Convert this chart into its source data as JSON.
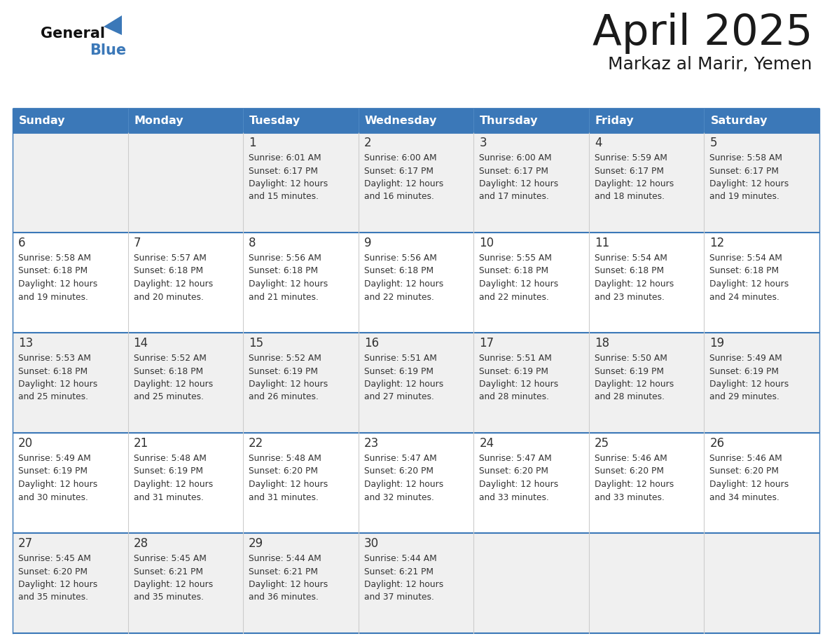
{
  "title": "April 2025",
  "subtitle": "Markaz al Marir, Yemen",
  "header_bg_color": "#3b78b8",
  "header_text_color": "#ffffff",
  "cell_bg_odd": "#f0f0f0",
  "cell_bg_even": "#ffffff",
  "day_headers": [
    "Sunday",
    "Monday",
    "Tuesday",
    "Wednesday",
    "Thursday",
    "Friday",
    "Saturday"
  ],
  "title_color": "#1a1a1a",
  "subtitle_color": "#1a1a1a",
  "text_color": "#333333",
  "line_color": "#3b78b8",
  "vline_color": "#cccccc",
  "days": [
    {
      "date": 1,
      "col": 2,
      "row": 0,
      "sunrise": "6:01 AM",
      "sunset": "6:17 PM",
      "daylight_h": "12 hours",
      "daylight_m": "and 15 minutes."
    },
    {
      "date": 2,
      "col": 3,
      "row": 0,
      "sunrise": "6:00 AM",
      "sunset": "6:17 PM",
      "daylight_h": "12 hours",
      "daylight_m": "and 16 minutes."
    },
    {
      "date": 3,
      "col": 4,
      "row": 0,
      "sunrise": "6:00 AM",
      "sunset": "6:17 PM",
      "daylight_h": "12 hours",
      "daylight_m": "and 17 minutes."
    },
    {
      "date": 4,
      "col": 5,
      "row": 0,
      "sunrise": "5:59 AM",
      "sunset": "6:17 PM",
      "daylight_h": "12 hours",
      "daylight_m": "and 18 minutes."
    },
    {
      "date": 5,
      "col": 6,
      "row": 0,
      "sunrise": "5:58 AM",
      "sunset": "6:17 PM",
      "daylight_h": "12 hours",
      "daylight_m": "and 19 minutes."
    },
    {
      "date": 6,
      "col": 0,
      "row": 1,
      "sunrise": "5:58 AM",
      "sunset": "6:18 PM",
      "daylight_h": "12 hours",
      "daylight_m": "and 19 minutes."
    },
    {
      "date": 7,
      "col": 1,
      "row": 1,
      "sunrise": "5:57 AM",
      "sunset": "6:18 PM",
      "daylight_h": "12 hours",
      "daylight_m": "and 20 minutes."
    },
    {
      "date": 8,
      "col": 2,
      "row": 1,
      "sunrise": "5:56 AM",
      "sunset": "6:18 PM",
      "daylight_h": "12 hours",
      "daylight_m": "and 21 minutes."
    },
    {
      "date": 9,
      "col": 3,
      "row": 1,
      "sunrise": "5:56 AM",
      "sunset": "6:18 PM",
      "daylight_h": "12 hours",
      "daylight_m": "and 22 minutes."
    },
    {
      "date": 10,
      "col": 4,
      "row": 1,
      "sunrise": "5:55 AM",
      "sunset": "6:18 PM",
      "daylight_h": "12 hours",
      "daylight_m": "and 22 minutes."
    },
    {
      "date": 11,
      "col": 5,
      "row": 1,
      "sunrise": "5:54 AM",
      "sunset": "6:18 PM",
      "daylight_h": "12 hours",
      "daylight_m": "and 23 minutes."
    },
    {
      "date": 12,
      "col": 6,
      "row": 1,
      "sunrise": "5:54 AM",
      "sunset": "6:18 PM",
      "daylight_h": "12 hours",
      "daylight_m": "and 24 minutes."
    },
    {
      "date": 13,
      "col": 0,
      "row": 2,
      "sunrise": "5:53 AM",
      "sunset": "6:18 PM",
      "daylight_h": "12 hours",
      "daylight_m": "and 25 minutes."
    },
    {
      "date": 14,
      "col": 1,
      "row": 2,
      "sunrise": "5:52 AM",
      "sunset": "6:18 PM",
      "daylight_h": "12 hours",
      "daylight_m": "and 25 minutes."
    },
    {
      "date": 15,
      "col": 2,
      "row": 2,
      "sunrise": "5:52 AM",
      "sunset": "6:19 PM",
      "daylight_h": "12 hours",
      "daylight_m": "and 26 minutes."
    },
    {
      "date": 16,
      "col": 3,
      "row": 2,
      "sunrise": "5:51 AM",
      "sunset": "6:19 PM",
      "daylight_h": "12 hours",
      "daylight_m": "and 27 minutes."
    },
    {
      "date": 17,
      "col": 4,
      "row": 2,
      "sunrise": "5:51 AM",
      "sunset": "6:19 PM",
      "daylight_h": "12 hours",
      "daylight_m": "and 28 minutes."
    },
    {
      "date": 18,
      "col": 5,
      "row": 2,
      "sunrise": "5:50 AM",
      "sunset": "6:19 PM",
      "daylight_h": "12 hours",
      "daylight_m": "and 28 minutes."
    },
    {
      "date": 19,
      "col": 6,
      "row": 2,
      "sunrise": "5:49 AM",
      "sunset": "6:19 PM",
      "daylight_h": "12 hours",
      "daylight_m": "and 29 minutes."
    },
    {
      "date": 20,
      "col": 0,
      "row": 3,
      "sunrise": "5:49 AM",
      "sunset": "6:19 PM",
      "daylight_h": "12 hours",
      "daylight_m": "and 30 minutes."
    },
    {
      "date": 21,
      "col": 1,
      "row": 3,
      "sunrise": "5:48 AM",
      "sunset": "6:19 PM",
      "daylight_h": "12 hours",
      "daylight_m": "and 31 minutes."
    },
    {
      "date": 22,
      "col": 2,
      "row": 3,
      "sunrise": "5:48 AM",
      "sunset": "6:20 PM",
      "daylight_h": "12 hours",
      "daylight_m": "and 31 minutes."
    },
    {
      "date": 23,
      "col": 3,
      "row": 3,
      "sunrise": "5:47 AM",
      "sunset": "6:20 PM",
      "daylight_h": "12 hours",
      "daylight_m": "and 32 minutes."
    },
    {
      "date": 24,
      "col": 4,
      "row": 3,
      "sunrise": "5:47 AM",
      "sunset": "6:20 PM",
      "daylight_h": "12 hours",
      "daylight_m": "and 33 minutes."
    },
    {
      "date": 25,
      "col": 5,
      "row": 3,
      "sunrise": "5:46 AM",
      "sunset": "6:20 PM",
      "daylight_h": "12 hours",
      "daylight_m": "and 33 minutes."
    },
    {
      "date": 26,
      "col": 6,
      "row": 3,
      "sunrise": "5:46 AM",
      "sunset": "6:20 PM",
      "daylight_h": "12 hours",
      "daylight_m": "and 34 minutes."
    },
    {
      "date": 27,
      "col": 0,
      "row": 4,
      "sunrise": "5:45 AM",
      "sunset": "6:20 PM",
      "daylight_h": "12 hours",
      "daylight_m": "and 35 minutes."
    },
    {
      "date": 28,
      "col": 1,
      "row": 4,
      "sunrise": "5:45 AM",
      "sunset": "6:21 PM",
      "daylight_h": "12 hours",
      "daylight_m": "and 35 minutes."
    },
    {
      "date": 29,
      "col": 2,
      "row": 4,
      "sunrise": "5:44 AM",
      "sunset": "6:21 PM",
      "daylight_h": "12 hours",
      "daylight_m": "and 36 minutes."
    },
    {
      "date": 30,
      "col": 3,
      "row": 4,
      "sunrise": "5:44 AM",
      "sunset": "6:21 PM",
      "daylight_h": "12 hours",
      "daylight_m": "and 37 minutes."
    }
  ]
}
